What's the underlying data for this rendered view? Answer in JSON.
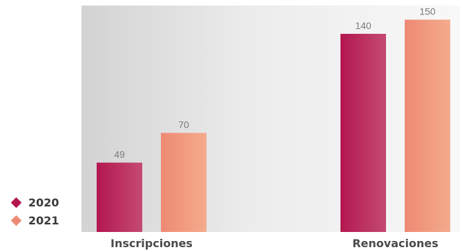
{
  "chart_data": {
    "type": "bar",
    "title": "",
    "xlabel": "",
    "ylabel": "",
    "categories": [
      "Inscripciones",
      "Renovaciones"
    ],
    "series": [
      {
        "name": "2020",
        "values": [
          49,
          140
        ],
        "color": "#b3174f",
        "color_light": "#c44a72"
      },
      {
        "name": "2021",
        "values": [
          70,
          150
        ],
        "color": "#ee8a74",
        "color_light": "#f4ab8c"
      }
    ],
    "ylim": [
      0,
      160
    ],
    "grid": false,
    "legend_position": "bottom-left",
    "value_labels": true,
    "background": "#d7d7d7"
  }
}
